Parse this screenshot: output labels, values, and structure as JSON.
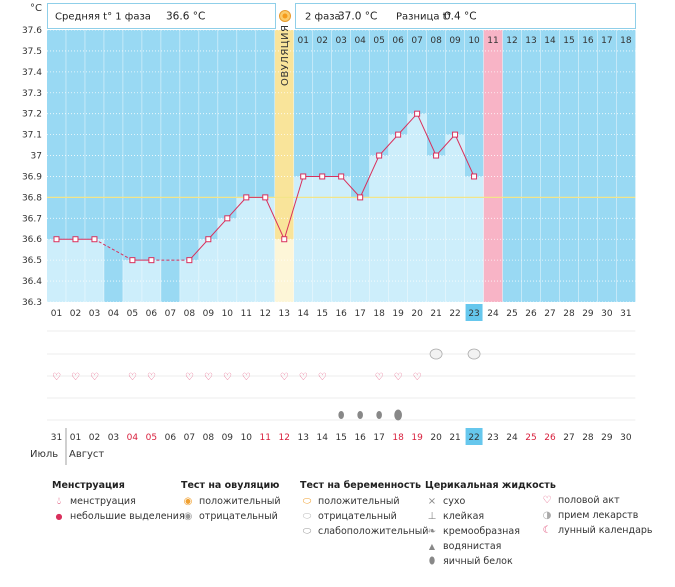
{
  "colors": {
    "bg_blue": "#99d9f3",
    "bar_fill": "#cdeefb",
    "ovulation": "#f9e49a",
    "ovulation_light": "#fdf6d8",
    "pink": "#f8b4c6",
    "line": "#d9305c",
    "coverline": "#f3e58a",
    "highlight": "#66c7ed",
    "header_border": "#8fcfe9"
  },
  "header": {
    "phase1": "Средняя t° 1 фаза",
    "phase1_value": "36.6 °C",
    "phase2": "2 фаза",
    "phase2_value": "37.0 °C",
    "diff": "Разница t°",
    "diff_value": "0.4 °C"
  },
  "chart_data": {
    "type": "line",
    "y_unit": "°C",
    "ylim": [
      36.3,
      37.6
    ],
    "yticks": [
      "37.6",
      "37.5",
      "37.4",
      "37.3",
      "37.2",
      "37.1",
      "37",
      "36.9",
      "36.8",
      "36.7",
      "36.6",
      "36.5",
      "36.4",
      "36.3"
    ],
    "coverline": 36.8,
    "ovulation_label": "ОВУЛЯЦИЯ",
    "ovulation_day": 13,
    "phase2_days": [
      "01",
      "02",
      "03",
      "04",
      "05",
      "06",
      "07",
      "08",
      "09",
      "10",
      "11",
      "12",
      "13",
      "14",
      "15",
      "16",
      "17",
      "18"
    ],
    "cycle_days": [
      "01",
      "02",
      "03",
      "04",
      "05",
      "06",
      "07",
      "08",
      "09",
      "10",
      "11",
      "12",
      "13",
      "14",
      "15",
      "16",
      "17",
      "18",
      "19",
      "20",
      "21",
      "22",
      "23",
      "24",
      "25",
      "26",
      "27",
      "28",
      "29",
      "30",
      "31"
    ],
    "highlight_day": "23",
    "temperatures": [
      36.6,
      36.6,
      36.6,
      null,
      36.5,
      36.5,
      null,
      36.5,
      36.6,
      36.7,
      36.8,
      36.8,
      36.6,
      36.9,
      36.9,
      36.9,
      36.8,
      37.0,
      37.1,
      37.2,
      37.0,
      37.1,
      36.9,
      null,
      null,
      null,
      null,
      null,
      null,
      null,
      null
    ],
    "dates": [
      "31",
      "01",
      "02",
      "03",
      "04",
      "05",
      "06",
      "07",
      "08",
      "09",
      "10",
      "11",
      "12",
      "13",
      "14",
      "15",
      "16",
      "17",
      "18",
      "19",
      "20",
      "21",
      "22",
      "23",
      "24",
      "25",
      "26",
      "27",
      "28",
      "29",
      "30"
    ],
    "red_dates": [
      "04",
      "05",
      "11",
      "12",
      "18",
      "19",
      "25",
      "26"
    ],
    "highlight_date": "22",
    "month1": "Июль",
    "month2": "Август",
    "intercourse_days": [
      1,
      2,
      3,
      5,
      6,
      8,
      9,
      10,
      11,
      13,
      14,
      15,
      18,
      19,
      20
    ],
    "pregnancy_test_days": [
      21,
      23
    ],
    "fluid_days": [
      16,
      17,
      18,
      19
    ]
  },
  "legend": {
    "menstruation": {
      "title": "Менструация",
      "items": [
        "менструация",
        "небольшие выделения"
      ]
    },
    "ovulation_test": {
      "title": "Тест на овуляцию",
      "items": [
        "положительный",
        "отрицательный"
      ]
    },
    "pregnancy_test": {
      "title": "Тест на беременность",
      "items": [
        "положительный",
        "отрицательный",
        "слабоположительный"
      ]
    },
    "cervical": {
      "title": "Церикальная жидкость",
      "items": [
        "сухо",
        "клейкая",
        "кремообразная",
        "водянистая",
        "яичный белок"
      ]
    },
    "other": {
      "items": [
        "половой акт",
        "прием лекарств",
        "лунный календарь"
      ]
    }
  }
}
